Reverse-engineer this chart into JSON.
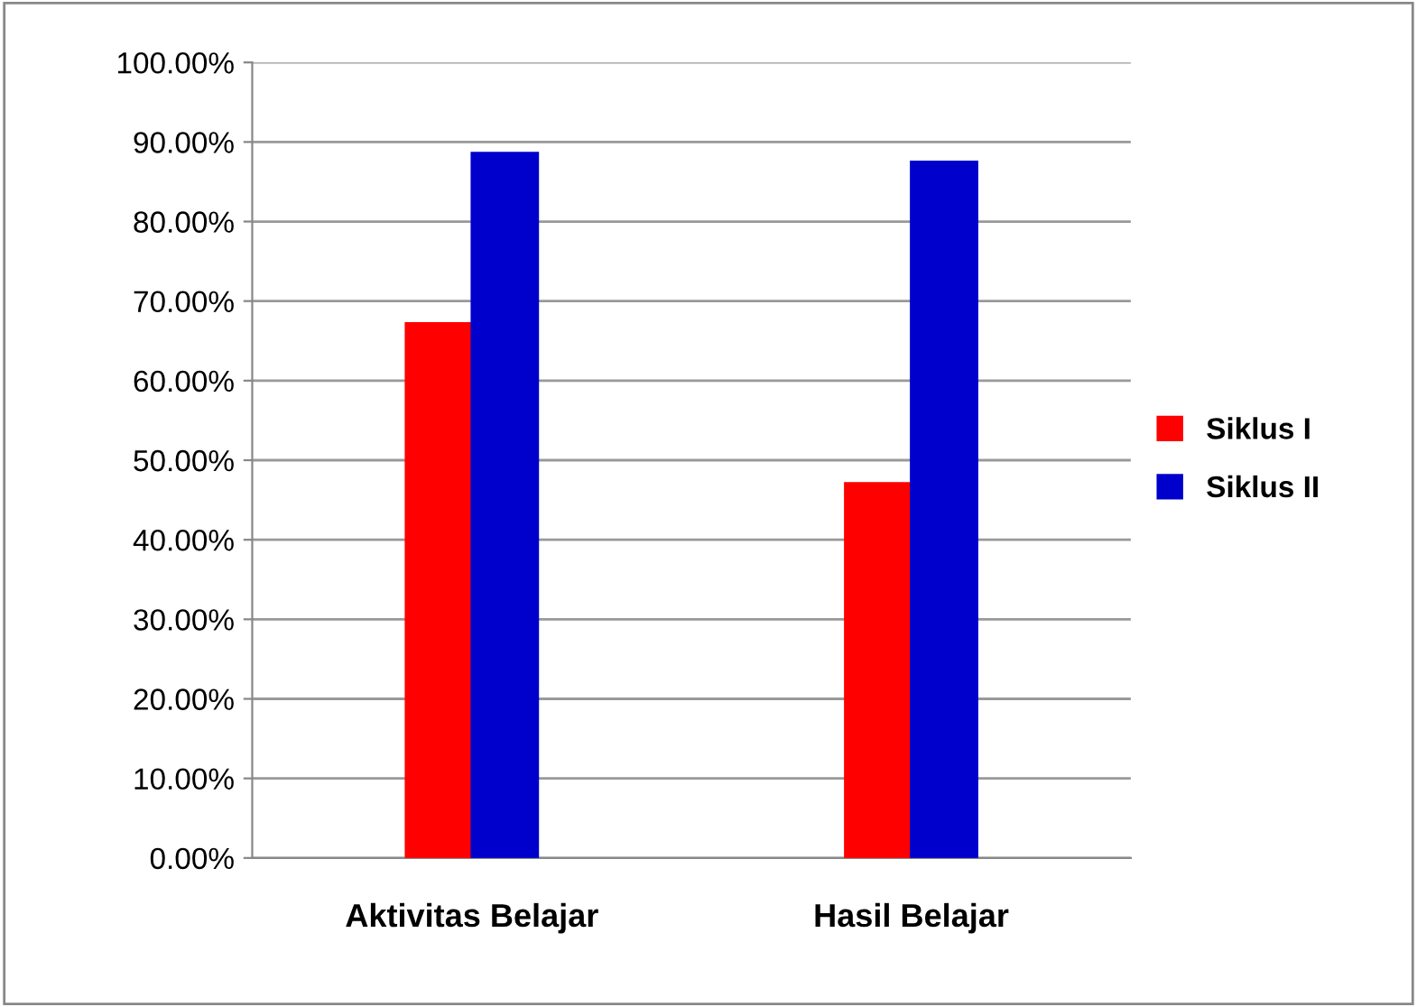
{
  "chart_data": {
    "type": "bar",
    "categories": [
      "Aktivitas Belajar",
      "Hasil Belajar"
    ],
    "series": [
      {
        "name": "Siklus I",
        "color": "#ff0000",
        "values": [
          67.2,
          47.1
        ]
      },
      {
        "name": "Siklus II",
        "color": "#0000cc",
        "values": [
          88.6,
          87.5
        ]
      }
    ],
    "ylim": [
      0,
      100
    ],
    "yticks": [
      {
        "value": 0,
        "label": "0.00%"
      },
      {
        "value": 10,
        "label": "10.00%"
      },
      {
        "value": 20,
        "label": "20.00%"
      },
      {
        "value": 30,
        "label": "30.00%"
      },
      {
        "value": 40,
        "label": "40.00%"
      },
      {
        "value": 50,
        "label": "50.00%"
      },
      {
        "value": 60,
        "label": "60.00%"
      },
      {
        "value": 70,
        "label": "70.00%"
      },
      {
        "value": 80,
        "label": "80.00%"
      },
      {
        "value": 90,
        "label": "90.00%"
      },
      {
        "value": 100,
        "label": "100.00%"
      }
    ],
    "grid": "y",
    "legend": "right"
  }
}
